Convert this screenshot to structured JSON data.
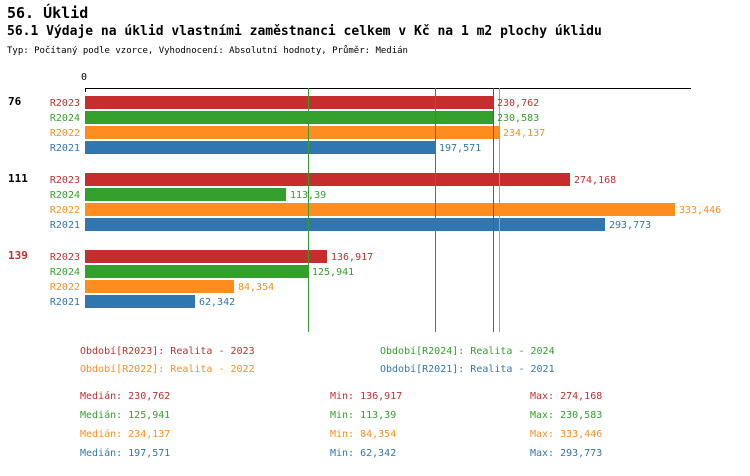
{
  "title": "56. Úklid",
  "subtitle": "56.1 Výdaje na úklid vlastními zaměstnanci celkem v Kč na 1 m2 plochy úklidu",
  "meta": "Typ: Počítaný podle vzorce, Vyhodnocení: Absolutní hodnoty, Průměr: Medián",
  "colors": {
    "R2023": "#c62d2d",
    "R2024": "#33a02c",
    "R2022": "#ff8c1e",
    "R2021": "#3076b0",
    "axis": "#000000"
  },
  "chart_data": {
    "type": "bar",
    "orientation": "horizontal",
    "title": "56.1 Výdaje na úklid vlastními zaměstnanci celkem v Kč na 1 m2 plochy úklidu",
    "unit": "Kč na 1 m2 plochy úklidu",
    "axis": {
      "origin_label": "0",
      "min": 0,
      "max": 342,
      "grid": false
    },
    "series_order": [
      "R2023",
      "R2024",
      "R2022",
      "R2021"
    ],
    "groups": [
      {
        "label": "76",
        "label_color": "#000000",
        "bars": [
          {
            "series": "R2023",
            "value": 230.762,
            "label": "230,762"
          },
          {
            "series": "R2024",
            "value": 230.583,
            "label": "230,583"
          },
          {
            "series": "R2022",
            "value": 234.137,
            "label": "234,137"
          },
          {
            "series": "R2021",
            "value": 197.571,
            "label": "197,571"
          }
        ]
      },
      {
        "label": "111",
        "label_color": "#000000",
        "bars": [
          {
            "series": "R2023",
            "value": 274.168,
            "label": "274,168"
          },
          {
            "series": "R2024",
            "value": 113.39,
            "label": "113,39"
          },
          {
            "series": "R2022",
            "value": 333.446,
            "label": "333,446"
          },
          {
            "series": "R2021",
            "value": 293.773,
            "label": "293,773"
          }
        ]
      },
      {
        "label": "139",
        "label_color": "#c62d2d",
        "bars": [
          {
            "series": "R2023",
            "value": 136.917,
            "label": "136,917"
          },
          {
            "series": "R2024",
            "value": 125.941,
            "label": "125,941"
          },
          {
            "series": "R2022",
            "value": 84.354,
            "label": "84,354"
          },
          {
            "series": "R2021",
            "value": 62.342,
            "label": "62,342"
          }
        ]
      }
    ],
    "median_lines": [
      {
        "series": "R2023",
        "value": 230.762
      },
      {
        "series": "R2024",
        "value": 125.941
      },
      {
        "series": "R2022",
        "value": 234.137
      },
      {
        "series": "R2021",
        "value": 197.571
      }
    ]
  },
  "legend": [
    {
      "series": "R2023",
      "text": "Období[R2023]: Realita - 2023"
    },
    {
      "series": "R2024",
      "text": "Období[R2024]: Realita - 2024"
    },
    {
      "series": "R2022",
      "text": "Období[R2022]: Realita - 2022"
    },
    {
      "series": "R2021",
      "text": "Období[R2021]: Realita - 2021"
    }
  ],
  "stats": [
    {
      "series": "R2023",
      "median": "Medián: 230,762",
      "min": "Min: 136,917",
      "max": "Max: 274,168"
    },
    {
      "series": "R2024",
      "median": "Medián: 125,941",
      "min": "Min: 113,39",
      "max": "Max: 230,583"
    },
    {
      "series": "R2022",
      "median": "Medián: 234,137",
      "min": "Min: 84,354",
      "max": "Max: 333,446"
    },
    {
      "series": "R2021",
      "median": "Medián: 197,571",
      "min": "Min: 62,342",
      "max": "Max: 293,773"
    }
  ]
}
